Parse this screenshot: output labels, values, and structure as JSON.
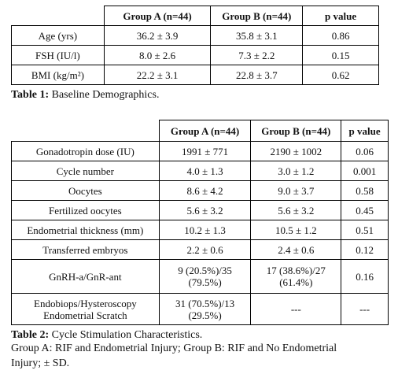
{
  "table1": {
    "headers": [
      "",
      "Group A (n=44)",
      "Group B (n=44)",
      "p value"
    ],
    "rows": [
      [
        "Age (yrs)",
        "36.2 ± 3.9",
        "35.8 ± 3.1",
        "0.86"
      ],
      [
        "FSH (IU/l)",
        "8.0 ± 2.6",
        "7.3 ± 2.2",
        "0.15"
      ],
      [
        "BMI (kg/m²)",
        "22.2 ± 3.1",
        "22.8 ± 3.7",
        "0.62"
      ]
    ],
    "caption_label": "Table 1:",
    "caption_text": " Baseline Demographics."
  },
  "table2": {
    "headers": [
      "",
      "Group A (n=44)",
      "Group B (n=44)",
      "p value"
    ],
    "rows": [
      [
        "Gonadotropin dose (IU)",
        "1991 ± 771",
        "2190 ± 1002",
        "0.06"
      ],
      [
        "Cycle number",
        "4.0 ± 1.3",
        "3.0 ± 1.2",
        "0.001"
      ],
      [
        "Oocytes",
        "8.6 ± 4.2",
        "9.0 ± 3.7",
        "0.58"
      ],
      [
        "Fertilized oocytes",
        "5.6 ± 3.2",
        "5.6 ± 3.2",
        "0.45"
      ],
      [
        "Endometrial thickness (mm)",
        "10.2 ± 1.3",
        "10.5 ± 1.2",
        "0.51"
      ],
      [
        "Transferred embryos",
        "2.2 ± 0.6",
        "2.4 ± 0.6",
        "0.12"
      ],
      [
        "GnRH-a/GnR-ant",
        "9 (20.5%)/35 (79.5%)",
        "17 (38.6%)/27 (61.4%)",
        "0.16"
      ],
      [
        "Endobiops/Hysteroscopy Endometrial Scratch",
        "31 (70.5%)/13 (29.5%)",
        "---",
        "---"
      ]
    ],
    "caption_label": "Table 2:",
    "caption_text": " Cycle Stimulation Characteristics.",
    "footnote_line1": "Group A: RIF and Endometrial Injury; Group B: RIF and No Endometrial",
    "footnote_line2": "Injury; ± SD."
  }
}
